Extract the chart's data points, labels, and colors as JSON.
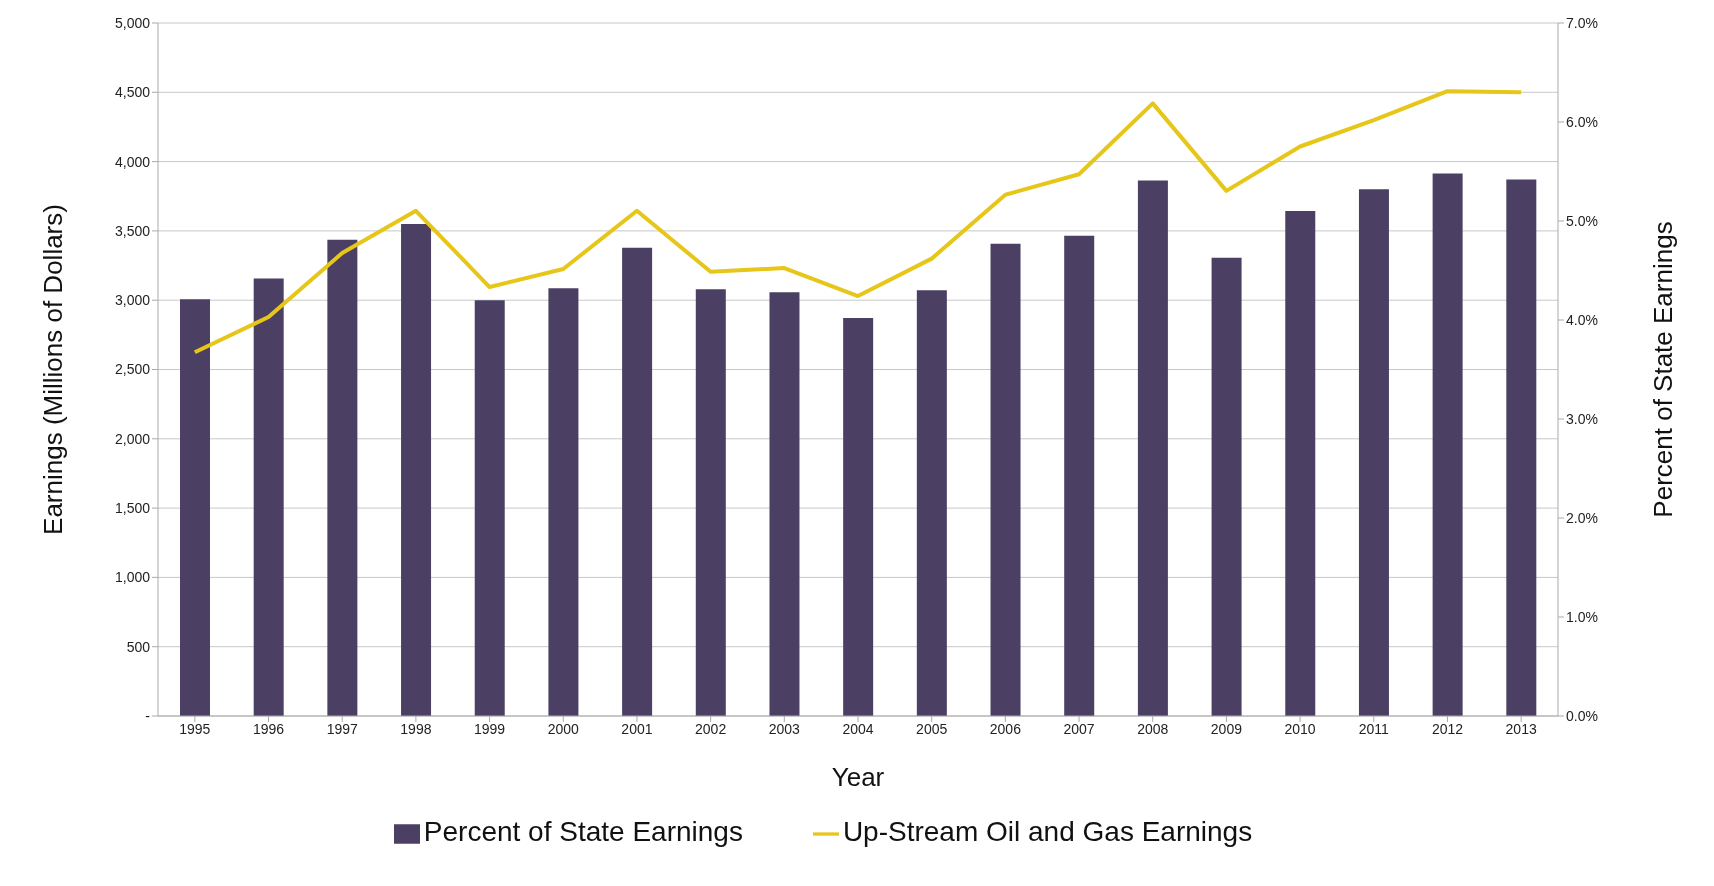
{
  "chart_data": {
    "type": "bar",
    "xlabel": "Year",
    "ylabel": "Earnings (Millions of Dollars)",
    "y2label": "Percent of State Earnings",
    "categories": [
      "1995",
      "1996",
      "1997",
      "1998",
      "1999",
      "2000",
      "2001",
      "2002",
      "2003",
      "2004",
      "2005",
      "2006",
      "2007",
      "2008",
      "2009",
      "2010",
      "2011",
      "2012",
      "2013"
    ],
    "series": [
      {
        "name": "Percent of State Earnings",
        "axis": "y2",
        "color": "#4b3f63",
        "values": [
          4.21,
          4.42,
          4.81,
          4.97,
          4.2,
          4.32,
          4.73,
          4.31,
          4.28,
          4.02,
          4.3,
          4.77,
          4.85,
          5.41,
          4.63,
          5.1,
          5.32,
          5.48,
          5.42
        ]
      },
      {
        "name": "Up-Stream Oil and Gas Earnings",
        "type": "line",
        "axis": "y",
        "color": "#e6c619",
        "values": [
          2624,
          2879,
          3340,
          3645,
          3095,
          3225,
          3645,
          3205,
          3232,
          3030,
          3300,
          3761,
          3909,
          4420,
          3789,
          4109,
          4300,
          4508,
          4500
        ]
      }
    ],
    "ylim": [
      0,
      5000
    ],
    "yticks": [
      {
        "value": 0,
        "label": "-"
      },
      {
        "value": 500,
        "label": "500"
      },
      {
        "value": 1000,
        "label": "1,000"
      },
      {
        "value": 1500,
        "label": "1,500"
      },
      {
        "value": 2000,
        "label": "2,000"
      },
      {
        "value": 2500,
        "label": "2,500"
      },
      {
        "value": 3000,
        "label": "3,000"
      },
      {
        "value": 3500,
        "label": "3,500"
      },
      {
        "value": 4000,
        "label": "4,000"
      },
      {
        "value": 4500,
        "label": "4,500"
      },
      {
        "value": 5000,
        "label": "5,000"
      }
    ],
    "y2lim": [
      0,
      7
    ],
    "y2ticks": [
      {
        "value": 0,
        "label": "0.0%"
      },
      {
        "value": 1,
        "label": "1.0%"
      },
      {
        "value": 2,
        "label": "2.0%"
      },
      {
        "value": 3,
        "label": "3.0%"
      },
      {
        "value": 4,
        "label": "4.0%"
      },
      {
        "value": 5,
        "label": "5.0%"
      },
      {
        "value": 6,
        "label": "6.0%"
      },
      {
        "value": 7,
        "label": "7.0%"
      }
    ],
    "grid": "y",
    "legend": "bottom",
    "marker": "none"
  }
}
